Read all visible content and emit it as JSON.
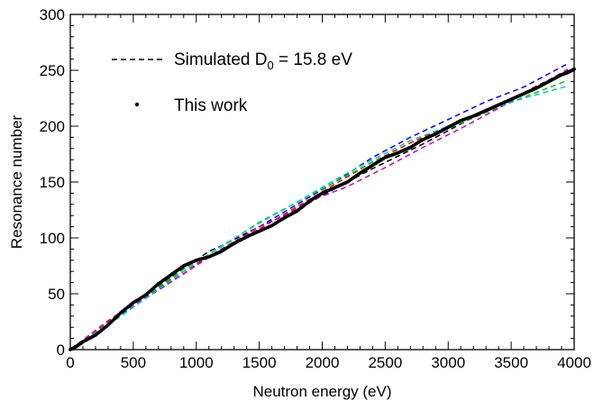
{
  "chart_data": {
    "type": "line",
    "title": "",
    "xlabel": "Neutron energy (eV)",
    "ylabel": "Resonance number",
    "xlim": [
      0,
      4000
    ],
    "ylim": [
      0,
      300
    ],
    "xticks": [
      0,
      500,
      1000,
      1500,
      2000,
      2500,
      3000,
      3500,
      4000
    ],
    "yticks": [
      0,
      50,
      100,
      150,
      200,
      250,
      300
    ],
    "grid": false,
    "legend_position": "top-left",
    "legend": [
      {
        "label_main": "Simulated D",
        "label_sub": "0",
        "label_tail": " = 15.8 eV",
        "style": "dashed"
      },
      {
        "label_main": "This work",
        "label_sub": "",
        "label_tail": "",
        "style": "dot"
      }
    ],
    "series": [
      {
        "color": "#000000",
        "style": "dashed",
        "points": [
          [
            0,
            0
          ],
          [
            200,
            14
          ],
          [
            500,
            40
          ],
          [
            800,
            65
          ],
          [
            1000,
            80
          ],
          [
            1100,
            88
          ],
          [
            1200,
            93
          ],
          [
            1500,
            110
          ],
          [
            1800,
            125
          ],
          [
            2000,
            138
          ],
          [
            2400,
            162
          ],
          [
            2800,
            184
          ],
          [
            3200,
            208
          ],
          [
            3600,
            230
          ],
          [
            3950,
            250
          ]
        ]
      },
      {
        "color": "#ff0000",
        "style": "dashed",
        "points": [
          [
            0,
            0
          ],
          [
            300,
            26
          ],
          [
            600,
            48
          ],
          [
            900,
            70
          ],
          [
            1200,
            90
          ],
          [
            1500,
            108
          ],
          [
            1800,
            128
          ],
          [
            2100,
            148
          ],
          [
            2400,
            168
          ],
          [
            2700,
            185
          ],
          [
            3000,
            200
          ],
          [
            3300,
            215
          ],
          [
            3600,
            230
          ],
          [
            3950,
            248
          ]
        ]
      },
      {
        "color": "#0000ff",
        "style": "dashed",
        "points": [
          [
            0,
            0
          ],
          [
            300,
            22
          ],
          [
            600,
            46
          ],
          [
            900,
            68
          ],
          [
            1200,
            90
          ],
          [
            1500,
            110
          ],
          [
            1800,
            130
          ],
          [
            2100,
            150
          ],
          [
            2400,
            172
          ],
          [
            2700,
            190
          ],
          [
            3000,
            206
          ],
          [
            3300,
            222
          ],
          [
            3600,
            235
          ],
          [
            3950,
            256
          ]
        ]
      },
      {
        "color": "#00cc00",
        "style": "dashed",
        "points": [
          [
            0,
            0
          ],
          [
            300,
            24
          ],
          [
            600,
            48
          ],
          [
            900,
            72
          ],
          [
            1200,
            92
          ],
          [
            1500,
            114
          ],
          [
            1800,
            132
          ],
          [
            2100,
            150
          ],
          [
            2400,
            168
          ],
          [
            2700,
            182
          ],
          [
            3000,
            198
          ],
          [
            3300,
            212
          ],
          [
            3600,
            226
          ],
          [
            3950,
            241
          ]
        ]
      },
      {
        "color": "#cc00cc",
        "style": "dashed",
        "points": [
          [
            0,
            0
          ],
          [
            300,
            25
          ],
          [
            600,
            47
          ],
          [
            900,
            68
          ],
          [
            1200,
            90
          ],
          [
            1500,
            110
          ],
          [
            1700,
            120
          ],
          [
            1900,
            133
          ],
          [
            2200,
            146
          ],
          [
            2500,
            163
          ],
          [
            2800,
            181
          ],
          [
            3100,
            198
          ],
          [
            3400,
            216
          ],
          [
            3700,
            235
          ],
          [
            3950,
            251
          ]
        ]
      },
      {
        "color": "#00cccc",
        "style": "dashed",
        "points": [
          [
            0,
            0
          ],
          [
            300,
            22
          ],
          [
            600,
            46
          ],
          [
            900,
            70
          ],
          [
            1200,
            93
          ],
          [
            1500,
            113
          ],
          [
            1800,
            132
          ],
          [
            2100,
            152
          ],
          [
            2400,
            170
          ],
          [
            2700,
            187
          ],
          [
            3000,
            200
          ],
          [
            3300,
            214
          ],
          [
            3600,
            225
          ],
          [
            3950,
            236
          ]
        ]
      }
    ],
    "measured": {
      "color": "#000000",
      "style": "dots",
      "points": [
        [
          0,
          0
        ],
        [
          50,
          3
        ],
        [
          100,
          7
        ],
        [
          200,
          13
        ],
        [
          300,
          22
        ],
        [
          400,
          33
        ],
        [
          500,
          42
        ],
        [
          600,
          49
        ],
        [
          700,
          59
        ],
        [
          800,
          67
        ],
        [
          900,
          75
        ],
        [
          1000,
          80
        ],
        [
          1100,
          83
        ],
        [
          1200,
          88
        ],
        [
          1300,
          95
        ],
        [
          1400,
          101
        ],
        [
          1500,
          106
        ],
        [
          1600,
          111
        ],
        [
          1700,
          118
        ],
        [
          1800,
          124
        ],
        [
          1900,
          133
        ],
        [
          2000,
          140
        ],
        [
          2100,
          145
        ],
        [
          2200,
          150
        ],
        [
          2300,
          158
        ],
        [
          2400,
          165
        ],
        [
          2500,
          172
        ],
        [
          2600,
          176
        ],
        [
          2700,
          181
        ],
        [
          2800,
          188
        ],
        [
          2900,
          193
        ],
        [
          3000,
          199
        ],
        [
          3100,
          205
        ],
        [
          3200,
          209
        ],
        [
          3300,
          214
        ],
        [
          3400,
          219
        ],
        [
          3500,
          224
        ],
        [
          3600,
          229
        ],
        [
          3700,
          234
        ],
        [
          3800,
          240
        ],
        [
          3900,
          246
        ],
        [
          3950,
          248
        ],
        [
          4000,
          251
        ]
      ]
    }
  }
}
